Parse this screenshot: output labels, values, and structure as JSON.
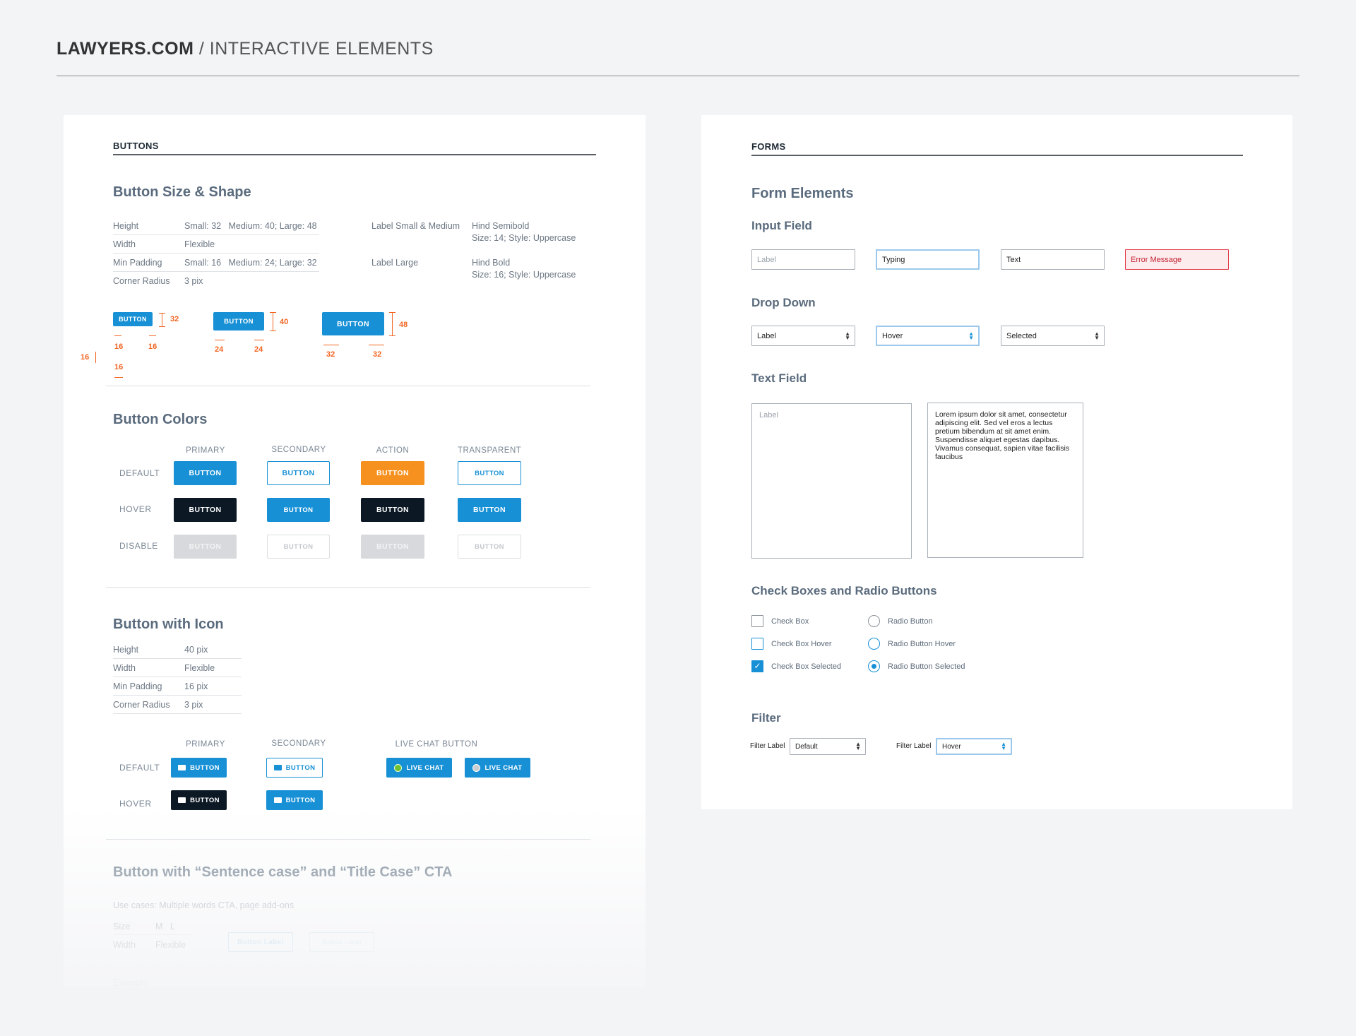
{
  "header": {
    "brand": "LAWYERS.COM",
    "separator": " / ",
    "title": "INTERACTIVE ELEMENTS"
  },
  "buttons_panel": {
    "section": "BUTTONS",
    "size_shape": {
      "title": "Button Size & Shape",
      "specs": [
        {
          "k": "Height",
          "v": "Small: 32   Medium: 40; Large: 48"
        },
        {
          "k": "Width",
          "v": "Flexible"
        },
        {
          "k": "Min Padding",
          "v": "Small: 16   Medium: 24; Large: 32"
        },
        {
          "k": "Corner Radius",
          "v": "3 pix"
        }
      ],
      "labels": [
        {
          "k": "Label Small & Medium",
          "v1": "Hind Semibold",
          "v2": "Size: 14; Style: Uppercase"
        },
        {
          "k": "Label Large",
          "v1": "Hind Bold",
          "v2": "Size: 16; Style: Uppercase"
        }
      ],
      "samples": [
        {
          "label": "BUTTON",
          "height": "32",
          "pad": "16"
        },
        {
          "label": "BUTTON",
          "height": "40",
          "pad": "24"
        },
        {
          "label": "BUTTON",
          "height": "48",
          "pad": "32"
        }
      ],
      "extra_dim": "16"
    },
    "colors": {
      "title": "Button Colors",
      "columns": [
        "PRIMARY",
        "SECONDARY",
        "ACTION",
        "TRANSPARENT"
      ],
      "rows": [
        "DEFAULT",
        "HOVER",
        "DISABLE"
      ],
      "button_label": "BUTTON"
    },
    "with_icon": {
      "title": "Button with Icon",
      "specs": [
        {
          "k": "Height",
          "v": "40 pix"
        },
        {
          "k": "Width",
          "v": "Flexible"
        },
        {
          "k": "Min Padding",
          "v": "16 pix"
        },
        {
          "k": "Corner Radius",
          "v": "3 pix"
        }
      ],
      "columns": [
        "PRIMARY",
        "SECONDARY",
        "LIVE CHAT BUTTON"
      ],
      "rows": [
        "DEFAULT",
        "HOVER"
      ],
      "button_label": "BUTTON",
      "chat_label": "LIVE CHAT"
    },
    "sentence_case": {
      "title": "Button with “Sentence case” and “Title Case” CTA",
      "use_cases": "Use cases: Multiple words CTA, page add-ons",
      "size_k": "Size",
      "size_v": "M   L",
      "width_k": "Width",
      "width_v": "Flexible",
      "btn1": "Button Label",
      "btn2": "Button Label",
      "example": "Example:"
    }
  },
  "forms_panel": {
    "section": "FORMS",
    "title": "Form Elements",
    "input": {
      "title": "Input Field",
      "states": [
        "Label",
        "Typing",
        "Text",
        "Error Message"
      ]
    },
    "dropdown": {
      "title": "Drop Down",
      "states": [
        "Label",
        "Hover",
        "Selected"
      ]
    },
    "textfield": {
      "title": "Text Field",
      "placeholder": "Label",
      "value": "Lorem ipsum dolor sit amet, consectetur adipiscing elit. Sed vel eros a lectus pretium bibendum at sit amet enim. Suspendisse aliquet egestas dapibus. Vivamus consequat, sapien vitae facilisis faucibus"
    },
    "checks": {
      "title": "Check Boxes and Radio Buttons",
      "checkbox": [
        "Check Box",
        "Check Box Hover",
        "Check Box Selected"
      ],
      "radio": [
        "Radio Button",
        "Radio Button Hover",
        "Radio Button Selected"
      ]
    },
    "filter": {
      "title": "Filter",
      "items": [
        {
          "label": "Filter Label",
          "value": "Default"
        },
        {
          "label": "Filter Label",
          "value": "Hover"
        }
      ]
    }
  },
  "colors": {
    "primary": "#1790d6",
    "dark": "#0c1925",
    "action": "#f6901e",
    "annotation": "#f26522",
    "error": "#e23a4a"
  }
}
